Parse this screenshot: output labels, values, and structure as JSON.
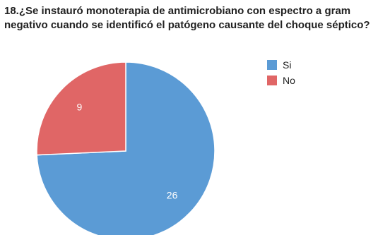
{
  "chart_data": {
    "type": "pie",
    "title": "18.¿Se instauró monoterapia de antimicrobiano con espectro a gram negativo cuando se identificó el patógeno causante del choque séptico?",
    "categories": [
      "Si",
      "No"
    ],
    "values": [
      26,
      9
    ],
    "colors": [
      "#5b9bd5",
      "#e06666"
    ],
    "legend": "right-top"
  }
}
